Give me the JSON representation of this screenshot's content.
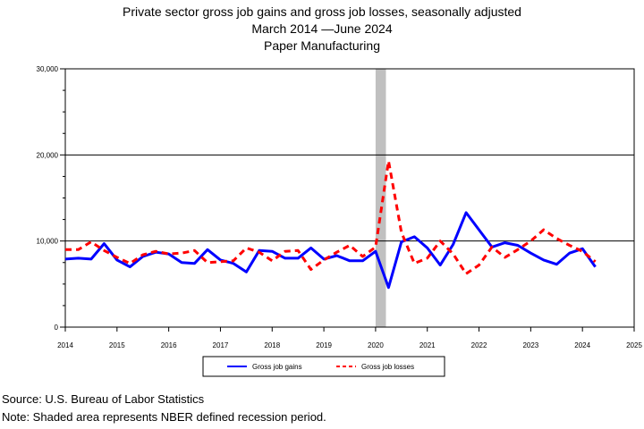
{
  "chart_data": {
    "type": "line",
    "title": "Private sector gross job gains and gross job losses, seasonally adjusted",
    "subtitle": "March 2014 —June 2024",
    "subtitle2": "Paper Manufacturing",
    "xlabel": "",
    "ylabel": "",
    "xlim": [
      2014,
      2025
    ],
    "ylim": [
      0,
      30000
    ],
    "x_ticks": [
      "2014",
      "2015",
      "2016",
      "2017",
      "2018",
      "2019",
      "2020",
      "2021",
      "2022",
      "2023",
      "2024",
      "2025"
    ],
    "y_ticks": [
      {
        "value": 0,
        "label": "0"
      },
      {
        "value": 10000,
        "label": "10,000"
      },
      {
        "value": 20000,
        "label": "20,000"
      },
      {
        "value": 30000,
        "label": "30,000"
      }
    ],
    "gridlines_y": [
      10000,
      20000
    ],
    "recession": {
      "start": 2020.0,
      "end": 2020.2
    },
    "legend_position": "bottom",
    "x": [
      2014.0,
      2014.25,
      2014.5,
      2014.75,
      2015.0,
      2015.25,
      2015.5,
      2015.75,
      2016.0,
      2016.25,
      2016.5,
      2016.75,
      2017.0,
      2017.25,
      2017.5,
      2017.75,
      2018.0,
      2018.25,
      2018.5,
      2018.75,
      2019.0,
      2019.25,
      2019.5,
      2019.75,
      2020.0,
      2020.25,
      2020.5,
      2020.75,
      2021.0,
      2021.25,
      2021.5,
      2021.75,
      2022.0,
      2022.25,
      2022.5,
      2022.75,
      2023.0,
      2023.25,
      2023.5,
      2023.75,
      2024.0,
      2024.25
    ],
    "series": [
      {
        "name": "Gross job gains",
        "color": "#0000ff",
        "style": "solid",
        "values": [
          7900,
          8000,
          7900,
          9700,
          7800,
          7000,
          8200,
          8700,
          8500,
          7500,
          7400,
          9000,
          7800,
          7400,
          6400,
          8900,
          8800,
          8000,
          8000,
          9200,
          7900,
          8300,
          7700,
          7700,
          8800,
          4600,
          9900,
          10500,
          9200,
          7200,
          9600,
          13300,
          11300,
          9300,
          9800,
          9500,
          8600,
          7800,
          7300,
          8600,
          9100,
          7000
        ]
      },
      {
        "name": "Gross job losses",
        "color": "#ff0000",
        "style": "dashed",
        "values": [
          9000,
          9000,
          9900,
          8900,
          8100,
          7400,
          8400,
          8800,
          8500,
          8600,
          8900,
          7500,
          7600,
          7700,
          9200,
          8700,
          7700,
          8800,
          8900,
          6700,
          7800,
          8700,
          9500,
          8200,
          9300,
          19300,
          11000,
          7400,
          8000,
          10000,
          8500,
          6200,
          7200,
          9300,
          8100,
          9000,
          10000,
          11300,
          10300,
          9500,
          8800,
          7600
        ]
      }
    ]
  },
  "footer": {
    "source": "Source: U.S. Bureau of Labor Statistics",
    "note": "Note: Shaded area represents NBER defined recession period."
  }
}
